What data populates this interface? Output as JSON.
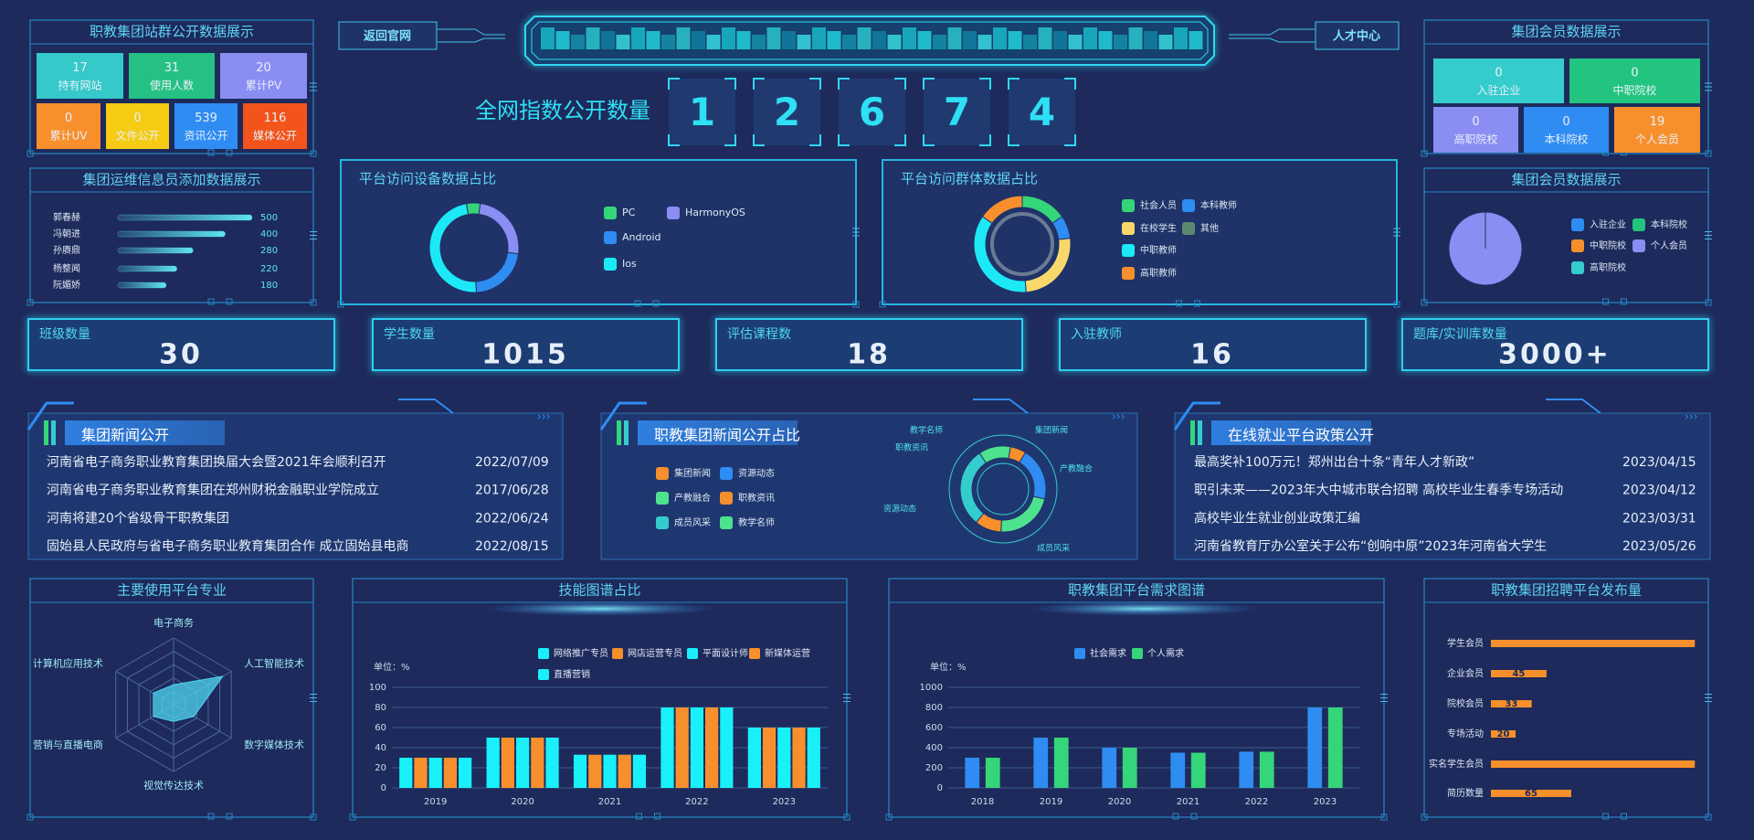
{
  "header": {
    "back": "返回官网",
    "talent": "人才中心",
    "index_title": "全网指数公开数量",
    "index_digits": [
      1,
      2,
      6,
      7,
      4
    ]
  },
  "site_stats": {
    "title": "职教集团站群公开数据展示",
    "tiles": [
      {
        "value": 17,
        "label": "持有网站",
        "color": "#35c9c9"
      },
      {
        "value": 31,
        "label": "使用人数",
        "color": "#25c184"
      },
      {
        "value": 20,
        "label": "累计PV",
        "color": "#8a8df2"
      },
      {
        "value": 0,
        "label": "累计UV",
        "color": "#f7902c"
      },
      {
        "value": 0,
        "label": "文件公开",
        "color": "#f5cb14"
      },
      {
        "value": 539,
        "label": "资讯公开",
        "color": "#2f8cf2"
      },
      {
        "value": 116,
        "label": "媒体公开",
        "color": "#f2541b"
      }
    ]
  },
  "member_stats": {
    "title": "集团会员数据展示",
    "tiles": [
      {
        "value": 0,
        "label": "入驻企业",
        "color": "#35cccd"
      },
      {
        "value": 0,
        "label": "中职院校",
        "color": "#22c47f"
      },
      {
        "value": 0,
        "label": "高职院校",
        "color": "#8a8df2"
      },
      {
        "value": 0,
        "label": "本科院校",
        "color": "#2f8cf2"
      },
      {
        "value": 19,
        "label": "个人会员",
        "color": "#f7902c"
      }
    ]
  },
  "operators": {
    "type": "hbar",
    "title": "集团运维信息员添加数据展示",
    "categories": [
      "郭春赫",
      "冯朝进",
      "孙赓鼎",
      "杨整闻",
      "阮媚娇"
    ],
    "values": [
      500,
      400,
      280,
      220,
      180
    ],
    "xlim": [
      0,
      500
    ],
    "color": "#5ee6f0"
  },
  "device_share": {
    "type": "donut",
    "title": "平台访问设备数据占比",
    "categories": [
      "PC",
      "HarmonyOS",
      "Android",
      "Ios"
    ],
    "values": [
      5,
      25,
      22,
      48
    ],
    "colors": [
      "#35d67a",
      "#8a8df2",
      "#2f8cf2",
      "#1de9f6"
    ]
  },
  "audience_share": {
    "type": "donut",
    "title": "平台访问群体数据占比",
    "categories": [
      "社会人员",
      "本科教师",
      "在校学生",
      "其他",
      "中职教师",
      "高职教师"
    ],
    "values": [
      12,
      6,
      20,
      0,
      28,
      12
    ],
    "colors": [
      "#35d67a",
      "#2f8cf2",
      "#f8d86a",
      "#5d8a6e",
      "#1de9f6",
      "#f7902c"
    ]
  },
  "member_share": {
    "type": "pie",
    "title": "集团会员数据展示",
    "categories": [
      "入驻企业",
      "本科院校",
      "中职院校",
      "个人会员",
      "高职院校"
    ],
    "values": [
      0,
      0,
      0,
      19,
      0
    ],
    "colors": [
      "#2f8cf2",
      "#22c47f",
      "#f7902c",
      "#8a8df2",
      "#35cccd"
    ]
  },
  "stats": [
    {
      "label": "班级数量",
      "value": 30
    },
    {
      "label": "学生数量",
      "value": 1015
    },
    {
      "label": "评估课程数",
      "value": 18
    },
    {
      "label": "入驻教师",
      "value": 16
    },
    {
      "label": "题库/实训库数量",
      "value": "3000+"
    }
  ],
  "group_news": {
    "title": "集团新闻公开",
    "items": [
      {
        "title": "河南省电子商务职业教育集团换届大会暨2021年会顺利召开",
        "date": "2022/07/09"
      },
      {
        "title": "河南省电子商务职业教育集团在郑州财税金融职业学院成立",
        "date": "2017/06/28"
      },
      {
        "title": "河南将建20个省级骨干职教集团",
        "date": "2022/06/24"
      },
      {
        "title": "固始县人民政府与省电子商务职业教育集团合作 成立固始县电商",
        "date": "2022/08/15"
      }
    ]
  },
  "news_share": {
    "type": "donut",
    "title": "职教集团新闻公开占比",
    "categories": [
      "集团新闻",
      "资源动态",
      "产教融合",
      "职教资讯",
      "成员风采",
      "教学名师"
    ],
    "values": [
      6,
      20,
      22,
      10,
      30,
      12
    ],
    "colors": [
      "#f7902c",
      "#2f8cf2",
      "#4de38e",
      "#f7902c",
      "#35cccd",
      "#4de38e"
    ]
  },
  "policy_news": {
    "title": "在线就业平台政策公开",
    "items": [
      {
        "title": "最高奖补100万元！郑州出台十条“青年人才新政”",
        "date": "2023/04/15"
      },
      {
        "title": "职引未来——2023年大中城市联合招聘 高校毕业生春季专场活动",
        "date": "2023/04/12"
      },
      {
        "title": "高校毕业生就业创业政策汇编",
        "date": "2023/03/31"
      },
      {
        "title": "河南省教育厅办公室关于公布“创响中原”2023年河南省大学生",
        "date": "2023/05/26"
      }
    ]
  },
  "majors": {
    "type": "radar",
    "title": "主要使用平台专业",
    "categories": [
      "电子商务",
      "人工智能技术",
      "数字媒体技术",
      "视觉传达技术",
      "营销与直播电商",
      "计算机应用技术"
    ],
    "values": [
      30,
      85,
      35,
      25,
      35,
      35
    ],
    "rlim": [
      0,
      100
    ],
    "color": "#4fd6f0"
  },
  "skills": {
    "type": "bar",
    "title": "技能图谱占比",
    "unit": "单位：%",
    "categories": [
      "2019",
      "2020",
      "2021",
      "2022",
      "2023"
    ],
    "series": [
      {
        "name": "网络推广专员",
        "color": "#19f0fa",
        "values": [
          30,
          50,
          33,
          80,
          60
        ]
      },
      {
        "name": "网店运营专员",
        "color": "#f7902c",
        "values": [
          30,
          50,
          33,
          80,
          60
        ]
      },
      {
        "name": "平面设计师",
        "color": "#19f0fa",
        "values": [
          30,
          50,
          33,
          80,
          60
        ]
      },
      {
        "name": "新媒体运营",
        "color": "#f7902c",
        "values": [
          30,
          50,
          33,
          80,
          60
        ]
      },
      {
        "name": "直播营销",
        "color": "#19f0fa",
        "values": [
          30,
          50,
          33,
          80,
          60
        ]
      }
    ],
    "ylim": [
      0,
      100
    ],
    "yticks": [
      0,
      20,
      40,
      60,
      80,
      100
    ]
  },
  "demand": {
    "type": "bar",
    "title": "职教集团平台需求图谱",
    "unit": "单位：%",
    "categories": [
      "2018",
      "2019",
      "2020",
      "2021",
      "2022",
      "2023"
    ],
    "series": [
      {
        "name": "社会需求",
        "color": "#2f8cf2",
        "values": [
          300,
          500,
          400,
          350,
          360,
          800
        ]
      },
      {
        "name": "个人需求",
        "color": "#35d67a",
        "values": [
          300,
          500,
          400,
          350,
          360,
          800
        ]
      }
    ],
    "ylim": [
      0,
      1000
    ],
    "yticks": [
      0,
      200,
      400,
      600,
      800,
      1000
    ]
  },
  "recruitment": {
    "type": "hbar",
    "title": "职教集团招聘平台发布量",
    "categories": [
      "学生会员",
      "企业会员",
      "院校会员",
      "专场活动",
      "实名学生会员",
      "简历数量"
    ],
    "values": [
      165,
      45,
      33,
      20,
      165,
      65
    ],
    "value_labels": [
      null,
      "45",
      "33",
      "20",
      null,
      "65"
    ],
    "xlim": [
      0,
      170
    ],
    "color": "#f7902c"
  }
}
